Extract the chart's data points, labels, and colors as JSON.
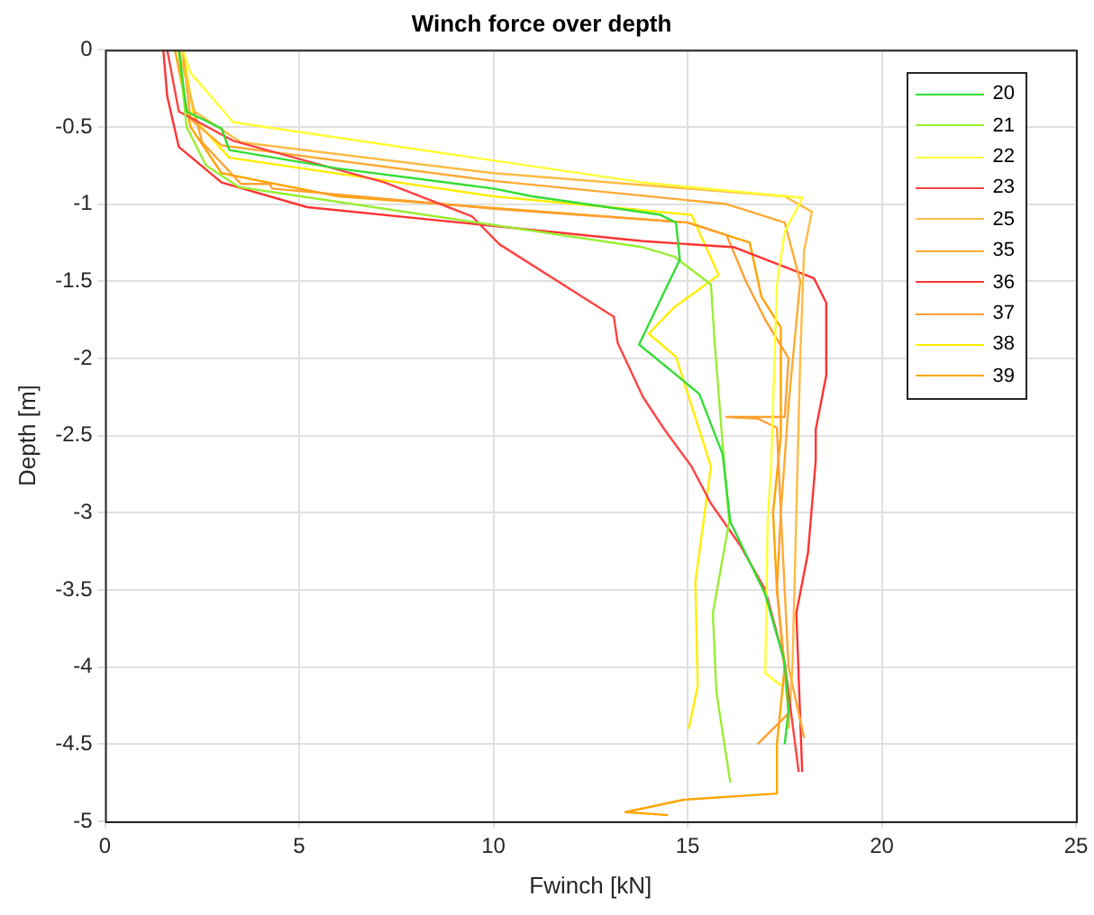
{
  "chart_data": {
    "type": "line",
    "title": "Winch force over depth",
    "xlabel": "Fwinch [kN]",
    "ylabel": "Depth [m]",
    "xlim": [
      0,
      25
    ],
    "xticks": [
      0,
      5,
      10,
      15,
      20,
      25
    ],
    "ylim": [
      -5,
      0
    ],
    "yticks": [
      -5,
      -4.5,
      -4,
      -3.5,
      -3,
      -2.5,
      -2,
      -1.5,
      -1,
      -0.5,
      0
    ],
    "grid": true,
    "legend": "top right",
    "series": [
      {
        "name": "20",
        "color": "#33dd33",
        "x": [
          1.9,
          2.1,
          3.0,
          3.2,
          6.0,
          10,
          11,
          14.3,
          14.7,
          14.8,
          13.75,
          15.3,
          15.9,
          16.1,
          17.0,
          17.5,
          17.6,
          17.5
        ],
        "values": [
          0,
          -0.4,
          -0.51,
          -0.65,
          -0.77,
          -0.9,
          -0.95,
          -1.07,
          -1.12,
          -1.36,
          -1.91,
          -2.23,
          -2.62,
          -3.06,
          -3.53,
          -3.97,
          -4.28,
          -4.5
        ]
      },
      {
        "name": "21",
        "color": "#99ee33",
        "x": [
          1.9,
          2.1,
          2.6,
          3.45,
          13.85,
          14.65,
          15.6,
          15.7,
          15.9,
          16.07,
          15.65,
          15.74,
          16.1
        ],
        "values": [
          0,
          -0.5,
          -0.75,
          -0.89,
          -1.28,
          -1.34,
          -1.52,
          -1.91,
          -2.55,
          -3.06,
          -3.65,
          -4.16,
          -4.75
        ]
      },
      {
        "name": "22",
        "color": "#ffff33",
        "x": [
          2.0,
          2.2,
          3.3,
          13.85,
          17.96,
          17.5,
          17.3,
          17.15,
          17.06,
          17.0,
          17.4
        ],
        "values": [
          0,
          -0.15,
          -0.47,
          -0.86,
          -0.96,
          -1.18,
          -1.52,
          -2.7,
          -3.06,
          -4.04,
          -4.12
        ]
      },
      {
        "name": "23",
        "color": "#ff4444",
        "x": [
          1.6,
          1.9,
          3.3,
          7.2,
          9.45,
          10.15,
          13.1,
          13.2,
          13.85,
          14.4,
          15.1,
          15.6,
          16.35,
          17.0,
          17.5,
          17.86
        ],
        "values": [
          0,
          -0.4,
          -0.59,
          -0.86,
          -1.08,
          -1.26,
          -1.73,
          -1.9,
          -2.25,
          -2.46,
          -2.7,
          -2.94,
          -3.21,
          -3.5,
          -3.97,
          -4.68
        ]
      },
      {
        "name": "25",
        "color": "#ffbb44",
        "x": [
          1.9,
          2.3,
          3.5,
          10,
          17.5,
          18.2,
          18.0,
          17.9,
          17.8,
          17.7,
          17.6
        ],
        "values": [
          0,
          -0.4,
          -0.6,
          -0.8,
          -0.95,
          -1.05,
          -1.3,
          -2,
          -3,
          -4,
          -4.4
        ]
      },
      {
        "name": "35",
        "color": "#ffaa33",
        "x": [
          2.0,
          2.2,
          3.0,
          10,
          16,
          17.5,
          17.9,
          17.6,
          17.4,
          17.6,
          18.0
        ],
        "values": [
          0,
          -0.45,
          -0.62,
          -0.85,
          -1.0,
          -1.12,
          -1.5,
          -2.3,
          -3,
          -4,
          -4.46
        ]
      },
      {
        "name": "36",
        "color": "#ff3333",
        "x": [
          1.5,
          1.6,
          1.9,
          3.0,
          5.2,
          13.85,
          16.2,
          18.25,
          18.57,
          18.57,
          18.3,
          18.3,
          18.1,
          17.8,
          17.95
        ],
        "values": [
          0,
          -0.3,
          -0.63,
          -0.86,
          -1.02,
          -1.24,
          -1.28,
          -1.48,
          -1.64,
          -2.11,
          -2.46,
          -2.66,
          -3.26,
          -3.65,
          -4.68
        ]
      },
      {
        "name": "37",
        "color": "#ffa030",
        "x": [
          1.9,
          2.5,
          3.5,
          4.25,
          4.3,
          10,
          15,
          16,
          16.5,
          17,
          17.6,
          17.5,
          16.0,
          16.8,
          17.3,
          17.4,
          17.3,
          17.6,
          16.8
        ],
        "values": [
          0,
          -0.6,
          -0.87,
          -0.87,
          -0.9,
          -1.03,
          -1.12,
          -1.2,
          -1.5,
          -1.75,
          -2.0,
          -2.38,
          -2.38,
          -2.39,
          -2.45,
          -3,
          -3.5,
          -4.3,
          -4.5
        ]
      },
      {
        "name": "38",
        "color": "#ffee00",
        "x": [
          2.0,
          2.3,
          3.2,
          10,
          15.1,
          15.8,
          14.65,
          14.0,
          14.7,
          15.6,
          15.2,
          15.26,
          15.03
        ],
        "values": [
          0,
          -0.45,
          -0.7,
          -0.95,
          -1.07,
          -1.46,
          -1.67,
          -1.84,
          -1.99,
          -2.7,
          -3.45,
          -4.12,
          -4.4
        ]
      },
      {
        "name": "39",
        "color": "#ffa500",
        "x": [
          1.8,
          2.2,
          3.0,
          6.0,
          15,
          16.6,
          16.9,
          17.4,
          17.4,
          17.2,
          17.3,
          17.5,
          17.3,
          17.3,
          14.9,
          13.4,
          14.5
        ],
        "values": [
          0,
          -0.5,
          -0.8,
          -0.95,
          -1.12,
          -1.25,
          -1.6,
          -1.8,
          -2.5,
          -3,
          -3.5,
          -4.0,
          -4.5,
          -4.82,
          -4.86,
          -4.94,
          -4.96
        ]
      }
    ]
  }
}
